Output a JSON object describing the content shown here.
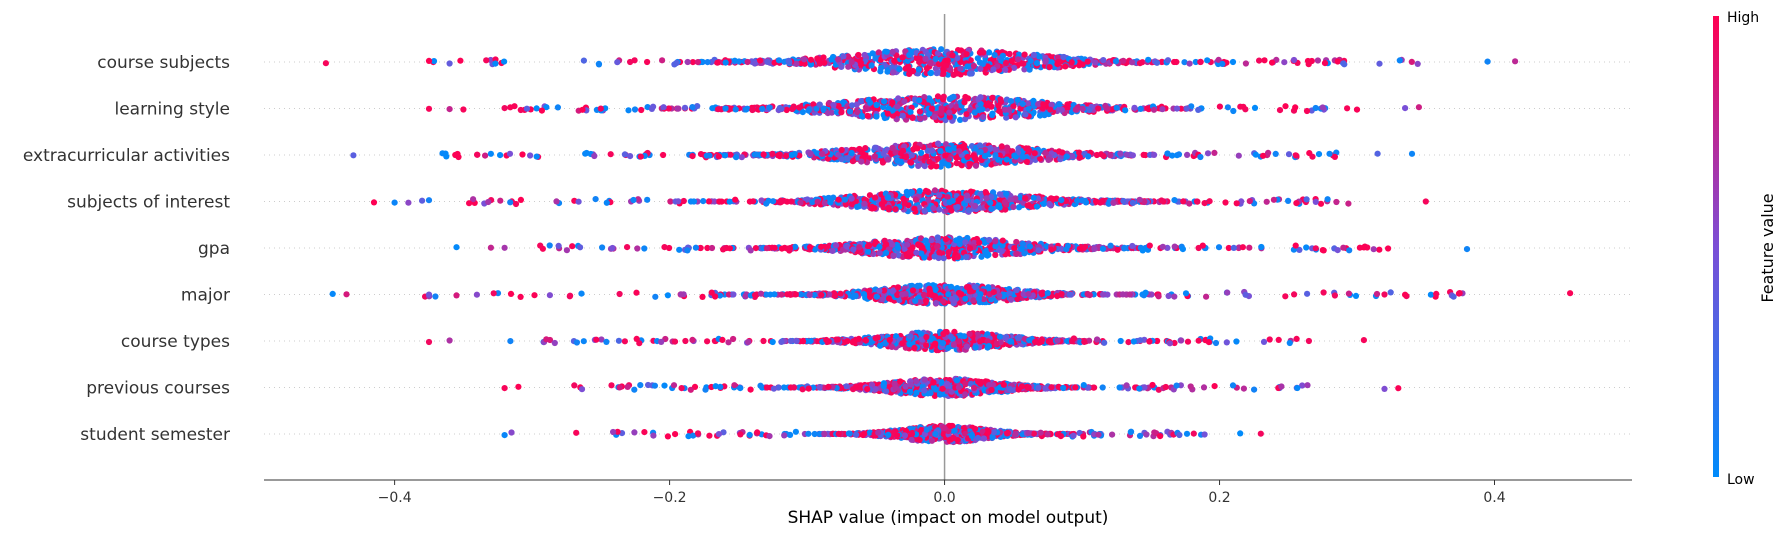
{
  "chart_data": {
    "type": "scatter",
    "subtype": "shap-beeswarm-summary",
    "xlabel": "SHAP value (impact on model output)",
    "xlim": [
      -0.495,
      0.5
    ],
    "xticks": [
      -0.4,
      -0.2,
      0.0,
      0.2,
      0.4
    ],
    "xtick_labels": [
      "−0.4",
      "−0.2",
      "0.0",
      "0.2",
      "0.4"
    ],
    "zero_line": true,
    "colorbar": {
      "title": "Feature value",
      "high_label": "High",
      "low_label": "Low",
      "low_color": "#008bfb",
      "mid_color": "#7b4fd6",
      "high_color": "#ff0052"
    },
    "features": [
      {
        "name": "course subjects",
        "min": -0.45,
        "max": 0.415,
        "density_width": 0.085,
        "outliers_high": [
          0.29,
          0.395,
          0.415
        ],
        "outliers_low": [
          -0.45,
          -0.375,
          -0.36
        ]
      },
      {
        "name": "learning style",
        "min": -0.375,
        "max": 0.345,
        "density_width": 0.09,
        "outliers_high": [
          0.255,
          0.275,
          0.3,
          0.335,
          0.345
        ],
        "outliers_low": [
          -0.375,
          -0.36,
          -0.35,
          -0.32
        ]
      },
      {
        "name": "extracurricular activities",
        "min": -0.43,
        "max": 0.34,
        "density_width": 0.08,
        "outliers_high": [
          0.28,
          0.315,
          0.34
        ],
        "outliers_low": [
          -0.43,
          -0.34,
          -0.33
        ]
      },
      {
        "name": "subjects of interest",
        "min": -0.415,
        "max": 0.35,
        "density_width": 0.075,
        "outliers_high": [
          0.27,
          0.285,
          0.35
        ],
        "outliers_low": [
          -0.415,
          -0.4,
          -0.39,
          -0.38,
          -0.375
        ]
      },
      {
        "name": "gpa",
        "min": -0.355,
        "max": 0.38,
        "density_width": 0.07,
        "outliers_high": [
          0.27,
          0.29,
          0.305,
          0.38
        ],
        "outliers_low": [
          -0.355,
          -0.33,
          -0.32
        ]
      },
      {
        "name": "major",
        "min": -0.445,
        "max": 0.455,
        "density_width": 0.06,
        "outliers_high": [
          0.32,
          0.335,
          0.455
        ],
        "outliers_low": [
          -0.445,
          -0.435,
          -0.375,
          -0.355
        ]
      },
      {
        "name": "course types",
        "min": -0.375,
        "max": 0.305,
        "density_width": 0.055,
        "outliers_high": [
          0.265,
          0.305
        ],
        "outliers_low": [
          -0.375,
          -0.36
        ]
      },
      {
        "name": "previous courses",
        "min": -0.32,
        "max": 0.33,
        "density_width": 0.05,
        "outliers_high": [
          0.245,
          0.32,
          0.33
        ],
        "outliers_low": [
          -0.32,
          -0.31
        ]
      },
      {
        "name": "student semester",
        "min": -0.32,
        "max": 0.23,
        "density_width": 0.04,
        "outliers_high": [
          0.215,
          0.23
        ],
        "outliers_low": [
          -0.32,
          -0.315
        ]
      }
    ]
  }
}
